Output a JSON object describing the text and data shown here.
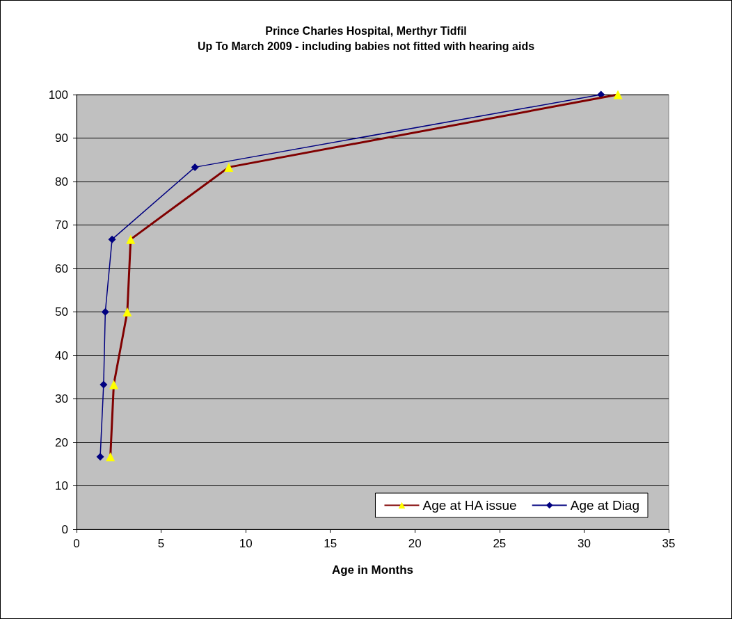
{
  "chart_data": {
    "type": "line",
    "title": "Prince Charles Hospital, Merthyr Tidfil",
    "subtitle": "Up To March 2009 - including babies not fitted with hearing aids",
    "xlabel": "Age in Months",
    "series": [
      {
        "name": "Age at HA issue",
        "color": "#800000",
        "marker": "triangle",
        "x": [
          2.0,
          2.2,
          3.0,
          3.2,
          9.0,
          32.0
        ],
        "values": [
          16.7,
          33.3,
          50,
          66.7,
          83.3,
          100
        ]
      },
      {
        "name": "Age at Diag",
        "color": "#000080",
        "marker": "diamond",
        "x": [
          1.4,
          1.6,
          1.7,
          2.1,
          7.0,
          31.0
        ],
        "values": [
          16.7,
          33.3,
          50,
          66.7,
          83.3,
          100
        ]
      }
    ],
    "xlim": [
      0,
      35
    ],
    "xticks": [
      0,
      5,
      10,
      15,
      20,
      25,
      30,
      35
    ],
    "ylim": [
      0,
      100
    ],
    "yticks": [
      0,
      10,
      20,
      30,
      40,
      50,
      60,
      70,
      80,
      90,
      100
    ],
    "grid": "y",
    "legend": "bottom right"
  }
}
